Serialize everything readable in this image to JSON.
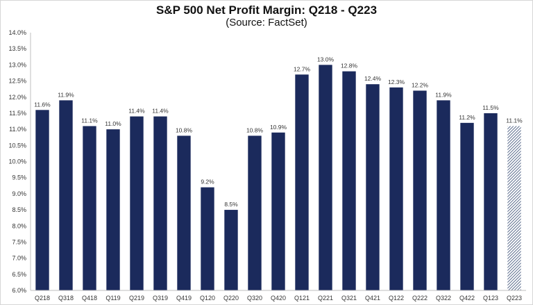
{
  "chart_data": {
    "type": "bar",
    "title": "S&P 500 Net Profit Margin: Q218 - Q223",
    "subtitle": "(Source: FactSet)",
    "xlabel": "",
    "ylabel": "",
    "ylim": [
      6.0,
      14.0
    ],
    "ytick_step": 0.5,
    "ytick_format": "percent_1dp",
    "grid": false,
    "legend": "none",
    "categories": [
      "Q218",
      "Q318",
      "Q418",
      "Q119",
      "Q219",
      "Q319",
      "Q419",
      "Q120",
      "Q220",
      "Q320",
      "Q420",
      "Q121",
      "Q221",
      "Q321",
      "Q421",
      "Q122",
      "Q222",
      "Q322",
      "Q422",
      "Q123",
      "Q223"
    ],
    "values": [
      11.6,
      11.9,
      11.1,
      11.0,
      11.4,
      11.4,
      10.8,
      9.2,
      8.5,
      10.8,
      10.9,
      12.7,
      13.0,
      12.8,
      12.4,
      12.3,
      12.2,
      11.9,
      11.2,
      11.5,
      11.1
    ],
    "data_labels": [
      "11.6%",
      "11.9%",
      "11.1%",
      "11.0%",
      "11.4%",
      "11.4%",
      "10.8%",
      "9.2%",
      "8.5%",
      "10.8%",
      "10.9%",
      "12.7%",
      "13.0%",
      "12.8%",
      "12.4%",
      "12.3%",
      "12.2%",
      "11.9%",
      "11.2%",
      "11.5%",
      "11.1%"
    ],
    "estimated": [
      false,
      false,
      false,
      false,
      false,
      false,
      false,
      false,
      false,
      false,
      false,
      false,
      false,
      false,
      false,
      false,
      false,
      false,
      false,
      false,
      true
    ],
    "colors": {
      "bar": "#1b2a5c",
      "estimate_hatch": "#5a6b8c",
      "axis": "#bfbfbf",
      "text": "#333333"
    }
  }
}
